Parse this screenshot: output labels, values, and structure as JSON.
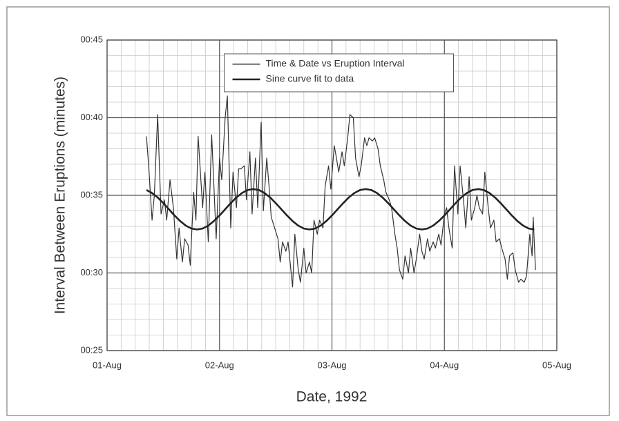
{
  "chart_data": {
    "type": "line",
    "xlabel": "Date, 1992",
    "ylabel": "Interval Between Eruptions (minutes)",
    "xlim": [
      0,
      4
    ],
    "xticks": [
      {
        "value": 0,
        "label": "01-Aug"
      },
      {
        "value": 1,
        "label": "02-Aug"
      },
      {
        "value": 2,
        "label": "03-Aug"
      },
      {
        "value": 3,
        "label": "04-Aug"
      },
      {
        "value": 4,
        "label": "05-Aug"
      }
    ],
    "ylim": [
      25,
      45
    ],
    "yticks": [
      {
        "value": 25,
        "label": "00:25"
      },
      {
        "value": 30,
        "label": "00:30"
      },
      {
        "value": 35,
        "label": "00:35"
      },
      {
        "value": 40,
        "label": "00:40"
      },
      {
        "value": 45,
        "label": "00:45"
      }
    ],
    "minor_xticks": [
      0.125,
      0.25,
      0.375,
      0.5,
      0.625,
      0.75,
      0.875,
      1.125,
      1.25,
      1.375,
      1.5,
      1.625,
      1.75,
      1.875,
      2.125,
      2.25,
      2.375,
      2.5,
      2.625,
      2.75,
      2.875,
      3.125,
      3.25,
      3.375,
      3.5,
      3.625,
      3.75,
      3.875
    ],
    "minor_yticks": [
      26,
      27,
      28,
      29,
      31,
      32,
      33,
      34,
      36,
      37,
      38,
      39,
      41,
      42,
      43,
      44
    ],
    "grid": true,
    "legend": "top-center",
    "series": [
      {
        "name": "Time & Date vs Eruption Interval",
        "color": "#333333",
        "line_width": 1.2,
        "x": [
          0.35,
          0.37,
          0.4,
          0.42,
          0.45,
          0.48,
          0.51,
          0.53,
          0.56,
          0.59,
          0.62,
          0.64,
          0.67,
          0.69,
          0.72,
          0.74,
          0.77,
          0.79,
          0.81,
          0.85,
          0.87,
          0.9,
          0.93,
          0.95,
          0.97,
          1.0,
          1.02,
          1.05,
          1.07,
          1.1,
          1.12,
          1.15,
          1.17,
          1.19,
          1.22,
          1.24,
          1.27,
          1.29,
          1.32,
          1.34,
          1.37,
          1.39,
          1.42,
          1.44,
          1.46,
          1.49,
          1.52,
          1.54,
          1.56,
          1.59,
          1.61,
          1.64,
          1.65,
          1.67,
          1.7,
          1.72,
          1.75,
          1.77,
          1.8,
          1.82,
          1.84,
          1.87,
          1.89,
          1.92,
          1.94,
          1.97,
          1.99,
          2.02,
          2.04,
          2.06,
          2.09,
          2.11,
          2.14,
          2.16,
          2.19,
          2.21,
          2.24,
          2.26,
          2.29,
          2.31,
          2.33,
          2.36,
          2.38,
          2.41,
          2.43,
          2.46,
          2.48,
          2.51,
          2.53,
          2.56,
          2.58,
          2.6,
          2.63,
          2.65,
          2.68,
          2.7,
          2.73,
          2.75,
          2.78,
          2.8,
          2.82,
          2.85,
          2.87,
          2.9,
          2.92,
          2.95,
          2.97,
          3.0,
          3.02,
          3.04,
          3.07,
          3.09,
          3.12,
          3.14,
          3.17,
          3.19,
          3.22,
          3.24,
          3.27,
          3.29,
          3.31,
          3.34,
          3.36,
          3.39,
          3.41,
          3.44,
          3.46,
          3.49,
          3.51,
          3.54,
          3.56,
          3.58,
          3.61,
          3.63,
          3.66,
          3.68,
          3.71,
          3.73,
          3.76,
          3.78,
          3.79,
          3.81
        ],
        "values": [
          38.8,
          36.9,
          33.4,
          35.0,
          40.2,
          33.8,
          34.7,
          33.4,
          36.0,
          34.2,
          30.9,
          32.9,
          30.7,
          32.2,
          31.8,
          30.5,
          35.2,
          33.4,
          38.8,
          34.2,
          36.5,
          32.0,
          38.9,
          35.6,
          32.2,
          37.4,
          36.0,
          40.0,
          41.4,
          32.9,
          36.5,
          34.2,
          36.7,
          36.7,
          36.9,
          34.7,
          37.8,
          33.8,
          37.4,
          34.2,
          39.7,
          34.0,
          37.4,
          35.6,
          33.6,
          32.9,
          32.2,
          30.7,
          32.0,
          31.4,
          32.0,
          29.8,
          29.1,
          32.5,
          30.2,
          29.4,
          31.6,
          30.0,
          30.7,
          30.0,
          33.4,
          32.5,
          33.4,
          32.9,
          35.6,
          36.9,
          35.4,
          38.2,
          37.4,
          36.5,
          37.8,
          36.9,
          38.7,
          40.2,
          40.0,
          37.4,
          36.2,
          36.9,
          38.7,
          38.2,
          38.7,
          38.5,
          38.7,
          38.0,
          36.9,
          36.0,
          35.2,
          34.7,
          34.2,
          32.5,
          31.6,
          30.2,
          29.6,
          31.1,
          30.0,
          31.6,
          30.0,
          30.9,
          32.5,
          31.4,
          30.9,
          32.2,
          31.4,
          32.0,
          31.6,
          32.5,
          31.8,
          33.8,
          34.2,
          32.9,
          31.6,
          36.9,
          33.8,
          36.9,
          34.7,
          32.9,
          36.2,
          33.4,
          34.2,
          35.0,
          34.2,
          33.8,
          36.5,
          34.2,
          32.9,
          33.4,
          32.0,
          32.2,
          31.6,
          30.9,
          29.6,
          31.1,
          31.3,
          30.2,
          29.4,
          29.6,
          29.4,
          29.8,
          32.5,
          31.1,
          33.6,
          30.2
        ]
      },
      {
        "name": "Sine curve fit to data",
        "color": "#222222",
        "line_width": 2.6,
        "x": [
          0.35,
          0.4,
          0.45,
          0.5,
          0.55,
          0.6,
          0.65,
          0.7,
          0.75,
          0.8,
          0.85,
          0.9,
          0.95,
          1.0,
          1.05,
          1.1,
          1.15,
          1.2,
          1.25,
          1.3,
          1.35,
          1.4,
          1.45,
          1.5,
          1.55,
          1.6,
          1.65,
          1.7,
          1.75,
          1.8,
          1.85,
          1.9,
          1.95,
          2.0,
          2.05,
          2.1,
          2.15,
          2.2,
          2.25,
          2.3,
          2.35,
          2.4,
          2.45,
          2.5,
          2.55,
          2.6,
          2.65,
          2.7,
          2.75,
          2.8,
          2.85,
          2.9,
          2.95,
          3.0,
          3.05,
          3.1,
          3.15,
          3.2,
          3.25,
          3.3,
          3.35,
          3.4,
          3.45,
          3.5,
          3.55,
          3.6,
          3.65,
          3.7,
          3.75,
          3.8
        ],
        "values": [
          35.34,
          35.15,
          34.86,
          34.5,
          34.1,
          33.7,
          33.34,
          33.05,
          32.86,
          32.8,
          32.86,
          33.05,
          33.34,
          33.7,
          34.1,
          34.5,
          34.86,
          35.15,
          35.34,
          35.4,
          35.34,
          35.15,
          34.86,
          34.5,
          34.1,
          33.7,
          33.34,
          33.05,
          32.86,
          32.8,
          32.86,
          33.05,
          33.34,
          33.7,
          34.1,
          34.5,
          34.86,
          35.15,
          35.34,
          35.4,
          35.34,
          35.15,
          34.86,
          34.5,
          34.1,
          33.7,
          33.34,
          33.05,
          32.86,
          32.8,
          32.86,
          33.05,
          33.34,
          33.7,
          34.1,
          34.5,
          34.86,
          35.15,
          35.34,
          35.4,
          35.34,
          35.15,
          34.86,
          34.5,
          34.1,
          33.7,
          33.34,
          33.05,
          32.86,
          32.8
        ]
      }
    ]
  }
}
